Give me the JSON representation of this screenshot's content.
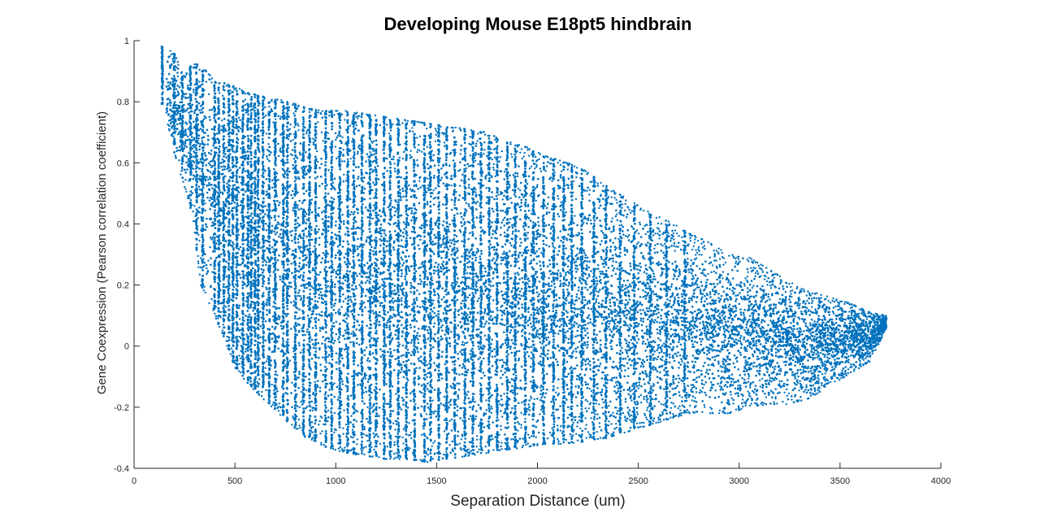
{
  "chart_data": {
    "type": "scatter",
    "title": "Developing Mouse E18pt5 hindbrain",
    "xlabel": "Separation Distance (um)",
    "ylabel": "Gene Coexpression (Pearson correlation coefficient)",
    "xlim": [
      0,
      4000
    ],
    "ylim": [
      -0.4,
      1
    ],
    "xticks": [
      0,
      500,
      1000,
      1500,
      2000,
      2500,
      3000,
      3500,
      4000
    ],
    "xtick_labels": [
      "0",
      "500",
      "1000",
      "1500",
      "2000",
      "2500",
      "3000",
      "3500",
      "4000"
    ],
    "yticks": [
      -0.4,
      -0.2,
      0,
      0.2,
      0.4,
      0.6,
      0.8,
      1
    ],
    "ytick_labels": [
      "-0.4",
      "-0.2",
      "0",
      "0.2",
      "0.4",
      "0.6",
      "0.8",
      "1"
    ],
    "grid": false,
    "legend": "none",
    "marker_color": "#0072BD",
    "series": [
      {
        "description": "dense point cloud; envelope per separation distance",
        "envelope": {
          "x": [
            140,
            200,
            250,
            290,
            330,
            400,
            450,
            500,
            560,
            620,
            700,
            780,
            850,
            950,
            1050,
            1150,
            1250,
            1350,
            1450,
            1550,
            1650,
            1750,
            1850,
            1950,
            2050,
            2150,
            2250,
            2350,
            2450,
            2550,
            2650,
            2750,
            2850,
            2950,
            3050,
            3150,
            3250,
            3350,
            3450,
            3550,
            3650,
            3730
          ],
          "ymax": [
            0.98,
            0.96,
            0.88,
            0.93,
            0.92,
            0.87,
            0.86,
            0.85,
            0.83,
            0.82,
            0.81,
            0.8,
            0.78,
            0.77,
            0.77,
            0.76,
            0.75,
            0.74,
            0.73,
            0.72,
            0.71,
            0.7,
            0.67,
            0.65,
            0.62,
            0.6,
            0.57,
            0.52,
            0.48,
            0.44,
            0.41,
            0.37,
            0.34,
            0.3,
            0.29,
            0.25,
            0.21,
            0.18,
            0.16,
            0.14,
            0.11,
            0.1
          ],
          "ymin": [
            0.79,
            0.63,
            0.52,
            0.43,
            0.2,
            0.1,
            0.02,
            -0.07,
            -0.12,
            -0.16,
            -0.21,
            -0.26,
            -0.3,
            -0.33,
            -0.35,
            -0.36,
            -0.37,
            -0.37,
            -0.38,
            -0.37,
            -0.36,
            -0.35,
            -0.34,
            -0.33,
            -0.32,
            -0.32,
            -0.31,
            -0.3,
            -0.28,
            -0.26,
            -0.24,
            -0.22,
            -0.22,
            -0.22,
            -0.2,
            -0.19,
            -0.19,
            -0.17,
            -0.13,
            -0.09,
            -0.05,
            0.06
          ]
        },
        "discrete_columns_x": [
          140,
          200,
          240,
          280,
          310,
          340,
          400,
          420,
          445,
          470,
          490,
          510,
          540,
          565,
          580,
          600,
          615,
          640,
          670,
          700,
          740,
          760,
          800,
          840,
          870,
          900,
          950,
          980,
          1020,
          1060,
          1090,
          1130,
          1170,
          1200,
          1240,
          1270,
          1310,
          1350,
          1390,
          1440,
          1470,
          1510,
          1550,
          1590,
          1640,
          1680,
          1720,
          1760,
          1800,
          1850,
          1890,
          1940,
          1980,
          2030,
          2080,
          2130,
          2170,
          2220,
          2280,
          2340,
          2410,
          2480,
          2560,
          2640,
          2730
        ]
      }
    ]
  }
}
